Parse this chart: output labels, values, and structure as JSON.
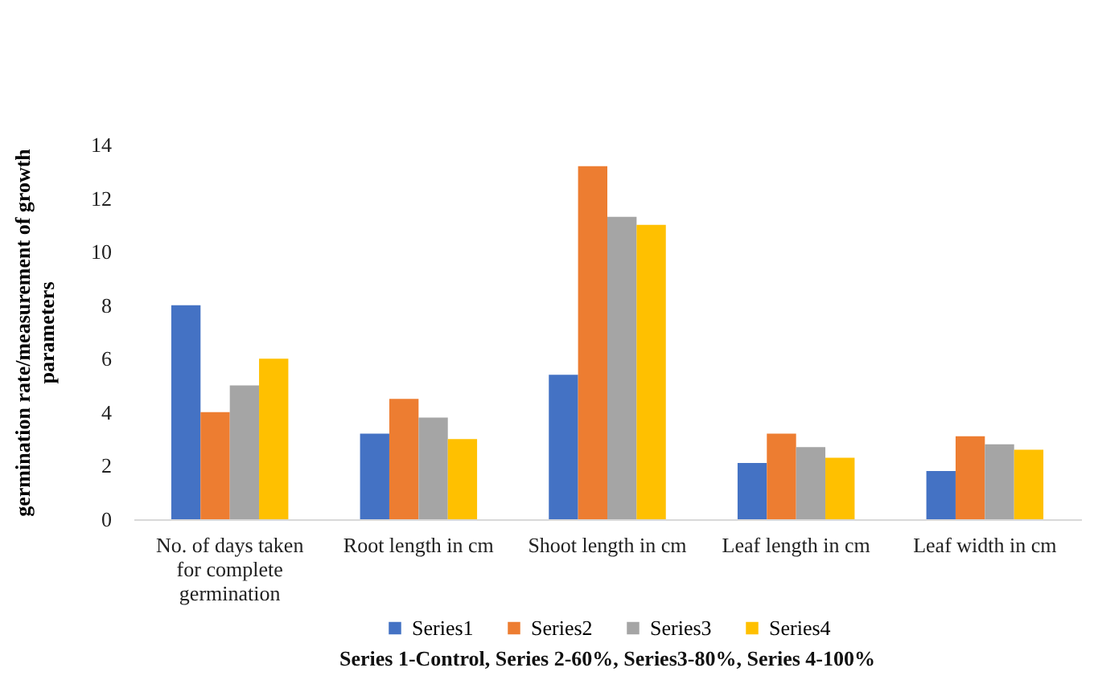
{
  "chart_data": {
    "type": "bar",
    "ylabel": "germination rate/measurement of growth parameters",
    "categories": [
      "No. of days taken for complete germination",
      "Root length in cm",
      "Shoot length in cm",
      "Leaf length in cm",
      "Leaf width in cm"
    ],
    "series": [
      {
        "name": "Series1",
        "color": "#4472c4",
        "values": [
          8,
          3.2,
          5.4,
          2.1,
          1.8
        ]
      },
      {
        "name": "Series2",
        "color": "#ed7d31",
        "values": [
          4,
          4.5,
          13.2,
          3.2,
          3.1
        ]
      },
      {
        "name": "Series3",
        "color": "#a5a5a5",
        "values": [
          5,
          3.8,
          11.3,
          2.7,
          2.8
        ]
      },
      {
        "name": "Series4",
        "color": "#ffc000",
        "values": [
          6,
          3.0,
          11.0,
          2.3,
          2.6
        ]
      }
    ],
    "ylim": [
      0,
      14
    ],
    "yticks": [
      0,
      2,
      4,
      6,
      8,
      10,
      12,
      14
    ],
    "grid": false,
    "legend": "bottom",
    "annotations": [
      "Series 1-Control, Series 2-60%, Series3-80%, Series 4-100%"
    ]
  }
}
